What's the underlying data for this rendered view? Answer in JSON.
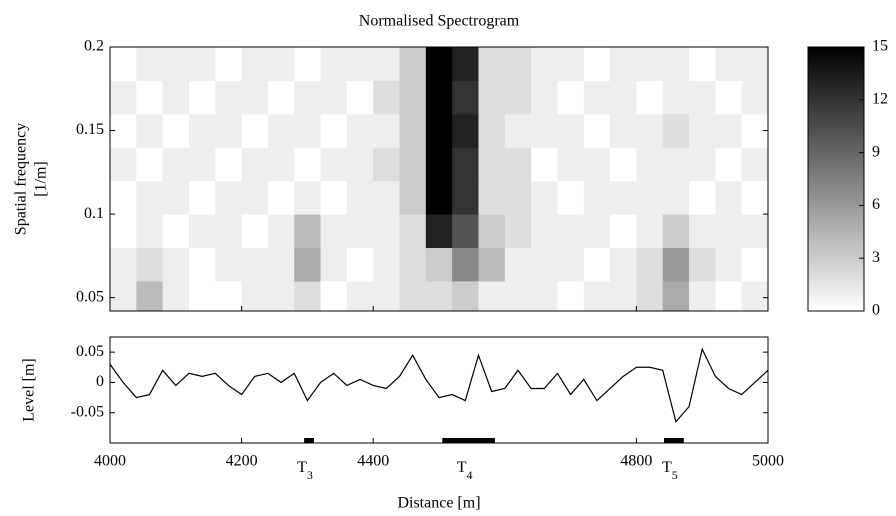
{
  "chart_data": [
    {
      "type": "heatmap",
      "title": "Normalised Spectrogram",
      "ylabel": [
        "Spatial frequency",
        "[1/m]"
      ],
      "x": [
        4020,
        4060,
        4100,
        4140,
        4180,
        4220,
        4260,
        4300,
        4340,
        4380,
        4420,
        4460,
        4500,
        4540,
        4580,
        4620,
        4660,
        4700,
        4740,
        4780,
        4820,
        4860,
        4900,
        4940,
        4980
      ],
      "y": [
        0.05,
        0.07,
        0.09,
        0.11,
        0.13,
        0.15,
        0.17,
        0.19
      ],
      "z": [
        [
          1,
          4,
          1,
          0,
          0,
          1,
          1,
          2,
          0,
          1,
          1,
          2,
          2,
          3,
          1,
          1,
          1,
          0,
          1,
          1,
          2,
          5,
          1,
          0,
          1
        ],
        [
          1,
          2,
          1,
          0,
          1,
          1,
          1,
          5,
          1,
          0,
          1,
          2,
          3,
          7,
          4,
          1,
          1,
          1,
          0,
          1,
          2,
          6,
          2,
          1,
          0
        ],
        [
          0,
          1,
          0,
          1,
          1,
          0,
          1,
          4,
          1,
          1,
          1,
          2,
          13,
          10,
          3,
          2,
          1,
          1,
          1,
          0,
          1,
          3,
          1,
          1,
          1
        ],
        [
          0,
          1,
          1,
          0,
          1,
          1,
          0,
          1,
          0,
          1,
          1,
          3,
          15,
          12,
          2,
          2,
          1,
          0,
          1,
          1,
          1,
          1,
          0,
          1,
          0
        ],
        [
          1,
          0,
          1,
          1,
          0,
          1,
          1,
          0,
          1,
          1,
          2,
          3,
          15,
          12,
          2,
          2,
          0,
          1,
          1,
          0,
          1,
          1,
          1,
          0,
          1
        ],
        [
          0,
          1,
          0,
          1,
          1,
          0,
          1,
          1,
          0,
          1,
          1,
          3,
          15,
          13,
          2,
          1,
          1,
          1,
          0,
          1,
          1,
          2,
          1,
          1,
          0
        ],
        [
          1,
          0,
          1,
          0,
          1,
          1,
          0,
          1,
          1,
          0,
          2,
          3,
          15,
          12,
          2,
          2,
          1,
          0,
          1,
          1,
          0,
          1,
          1,
          0,
          1
        ],
        [
          0,
          1,
          1,
          1,
          0,
          1,
          1,
          0,
          1,
          1,
          1,
          3,
          15,
          13,
          2,
          2,
          1,
          1,
          0,
          1,
          1,
          1,
          0,
          1,
          1
        ]
      ],
      "xlim": [
        4000,
        5000
      ],
      "ylim": [
        0.042,
        0.2
      ],
      "yticks": [
        0.05,
        0.1,
        0.15,
        0.2
      ],
      "colorbar": {
        "lim": [
          0,
          15
        ],
        "ticks": [
          0,
          3,
          6,
          9,
          12,
          15
        ]
      }
    },
    {
      "type": "line",
      "xlabel": "Distance [m]",
      "ylabel": "Level [m]",
      "color": "#000000",
      "x": [
        4000,
        4020,
        4040,
        4060,
        4080,
        4100,
        4120,
        4140,
        4160,
        4180,
        4200,
        4220,
        4240,
        4260,
        4280,
        4300,
        4320,
        4340,
        4360,
        4380,
        4400,
        4420,
        4440,
        4460,
        4480,
        4500,
        4520,
        4540,
        4560,
        4580,
        4600,
        4620,
        4640,
        4660,
        4680,
        4700,
        4720,
        4740,
        4760,
        4780,
        4800,
        4820,
        4840,
        4860,
        4880,
        4900,
        4920,
        4940,
        4960,
        4980,
        5000
      ],
      "values": [
        0.03,
        0.0,
        -0.025,
        -0.02,
        0.02,
        -0.005,
        0.015,
        0.01,
        0.015,
        -0.005,
        -0.02,
        0.01,
        0.015,
        0.0,
        0.015,
        -0.03,
        0.0,
        0.015,
        -0.005,
        0.005,
        -0.005,
        -0.01,
        0.01,
        0.045,
        0.005,
        -0.025,
        -0.02,
        -0.03,
        0.045,
        -0.015,
        -0.01,
        0.02,
        -0.01,
        -0.01,
        0.015,
        -0.02,
        0.005,
        -0.03,
        -0.01,
        0.01,
        0.025,
        0.025,
        0.02,
        -0.065,
        -0.04,
        0.055,
        0.01,
        -0.01,
        -0.02,
        0.0,
        0.02
      ],
      "xlim": [
        4000,
        5000
      ],
      "ylim": [
        -0.1,
        0.075
      ],
      "xticks": [
        4000,
        4200,
        4400,
        4800,
        5000
      ],
      "yticks": [
        -0.05,
        0,
        0.05
      ],
      "markers": [
        {
          "label": "T",
          "sub": "3",
          "start": 4295,
          "end": 4310
        },
        {
          "label": "T",
          "sub": "4",
          "start": 4505,
          "end": 4585
        },
        {
          "label": "T",
          "sub": "5",
          "start": 4842,
          "end": 4872
        }
      ]
    }
  ]
}
